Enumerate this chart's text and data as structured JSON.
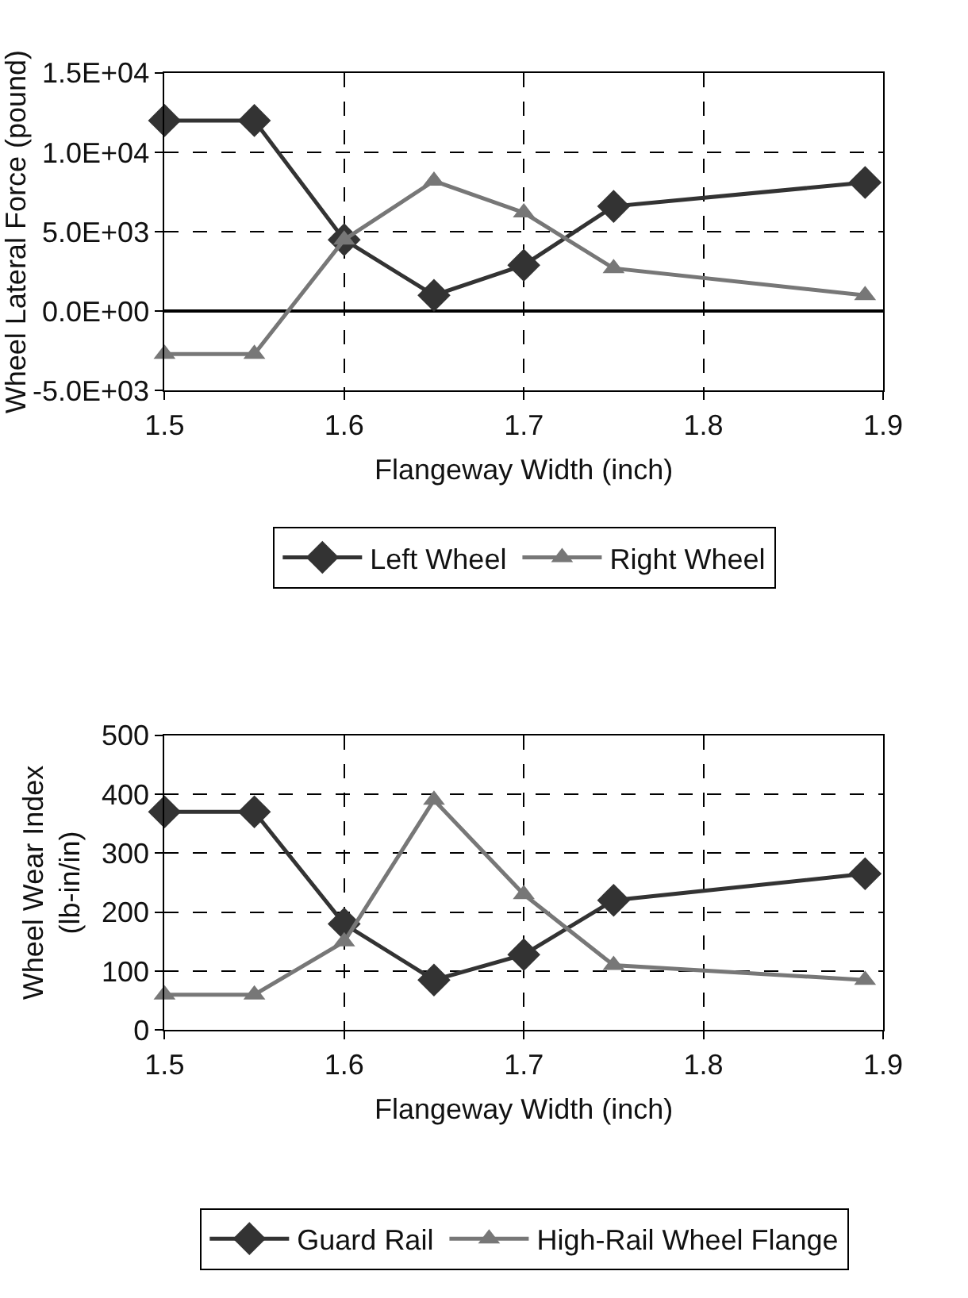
{
  "chart_data": [
    {
      "type": "line",
      "xlabel": "Flangeway Width (inch)",
      "ylabel": "Wheel Lateral Force (pound)",
      "x": [
        1.5,
        1.55,
        1.6,
        1.65,
        1.7,
        1.75,
        1.89
      ],
      "series": [
        {
          "name": "Left Wheel",
          "color": "#333333",
          "marker": "diamond",
          "values": [
            12000,
            12000,
            4500,
            1000,
            2900,
            6600,
            8100
          ]
        },
        {
          "name": "Right Wheel",
          "color": "#777777",
          "marker": "triangle",
          "values": [
            -2700,
            -2700,
            4500,
            8200,
            6200,
            2700,
            1000
          ]
        }
      ],
      "xlim": [
        1.5,
        1.9
      ],
      "xticks": [
        1.5,
        1.6,
        1.7,
        1.8,
        1.9
      ],
      "ylim": [
        -5000,
        15000
      ],
      "yticks": [
        {
          "value": -5000,
          "label": "-5.0E+03"
        },
        {
          "value": 0,
          "label": "0.0E+00"
        },
        {
          "value": 5000,
          "label": "5.0E+03"
        },
        {
          "value": 10000,
          "label": "1.0E+04"
        },
        {
          "value": 15000,
          "label": "1.5E+04"
        }
      ],
      "grid": true,
      "legend": "bottom",
      "line_style": "solid"
    },
    {
      "type": "line",
      "xlabel": "Flangeway Width (inch)",
      "ylabel": "Wheel Wear Index\n(lb-in/in)",
      "x": [
        1.5,
        1.55,
        1.6,
        1.65,
        1.7,
        1.75,
        1.89
      ],
      "series": [
        {
          "name": "Guard Rail",
          "color": "#333333",
          "marker": "diamond",
          "values": [
            370,
            370,
            180,
            85,
            128,
            220,
            265
          ]
        },
        {
          "name": "High-Rail Wheel Flange",
          "color": "#777777",
          "marker": "triangle",
          "values": [
            60,
            60,
            150,
            390,
            230,
            110,
            85
          ]
        }
      ],
      "xlim": [
        1.5,
        1.9
      ],
      "xticks": [
        1.5,
        1.6,
        1.7,
        1.8,
        1.9
      ],
      "ylim": [
        0,
        500
      ],
      "yticks": [
        0,
        100,
        200,
        300,
        400,
        500
      ],
      "grid": true,
      "legend": "bottom",
      "line_style": "solid"
    }
  ]
}
